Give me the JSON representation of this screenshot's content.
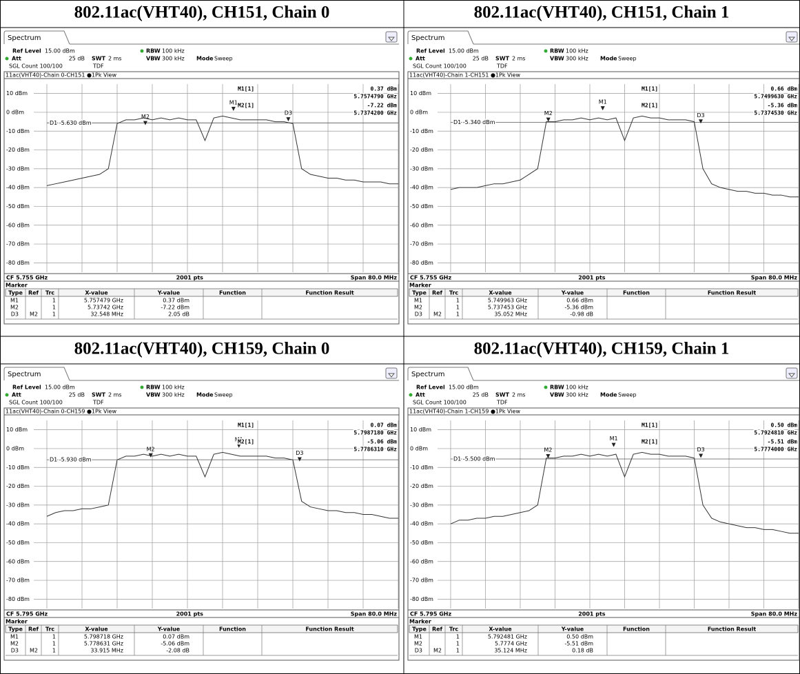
{
  "common": {
    "ref_level": "Ref Level",
    "att": "Att",
    "swt": "SWT",
    "rbw": "RBW",
    "vbw": "VBW",
    "mode": "Mode",
    "marker": "Marker",
    "columns": [
      "Type",
      "Ref",
      "Trc",
      "X-value",
      "Y-value",
      "Function",
      "Function Result"
    ]
  },
  "panels": [
    {
      "heading": "802.11ac(VHT40), CH151, Chain 0",
      "tab": "Spectrum",
      "ref_level": "15.00 dBm",
      "att": "25 dB",
      "swt": "2 ms",
      "rbw": "100 kHz",
      "vbw": "300 kHz",
      "mode": "Sweep",
      "count": "SGL Count 100/100",
      "tdf": "TDF",
      "view": "11ac(VHT40)-Chain 0-CH151 ●1Pk View",
      "readout": [
        [
          "M1[1]",
          "0.37 dBm",
          "5.7574790 GHz"
        ],
        [
          "M2[1]",
          "-7.22 dBm",
          "5.7374200 GHz"
        ]
      ],
      "cf": "CF 5.755 GHz",
      "points": "2001 pts",
      "span": "Span 80.0 MHz",
      "marker_rows": [
        {
          "type": "M1",
          "trc": "1",
          "x": "5.757479 GHz",
          "y": "0.37 dBm"
        },
        {
          "type": "M2",
          "trc": "1",
          "x": "5.73742 GHz",
          "y": "-7.22 dBm"
        },
        {
          "type": "D3",
          "ref": "M2",
          "trc": "1",
          "x": "32.548 MHz",
          "y": "2.05 dB"
        }
      ],
      "chart": {
        "type": "line",
        "xlim": [
          5.715,
          5.795
        ],
        "ylim": [
          -85,
          15
        ],
        "yticks": [
          {
            "value": 10,
            "label": "10 dBm"
          },
          {
            "value": 0,
            "label": "0 dBm"
          },
          {
            "value": -10,
            "label": "-10 dBm"
          },
          {
            "value": -20,
            "label": "-20 dBm"
          },
          {
            "value": -30,
            "label": "-30 dBm"
          },
          {
            "value": -40,
            "label": "-40 dBm"
          },
          {
            "value": -50,
            "label": "-50 dBm"
          },
          {
            "value": -60,
            "label": "-60 dBm"
          },
          {
            "value": -70,
            "label": "-70 dBm"
          },
          {
            "value": -80,
            "label": "-80 dBm"
          }
        ],
        "x": [
          5.715,
          5.717,
          5.719,
          5.721,
          5.723,
          5.725,
          5.727,
          5.729,
          5.731,
          5.733,
          5.735,
          5.737,
          5.739,
          5.741,
          5.743,
          5.745,
          5.747,
          5.749,
          5.751,
          5.753,
          5.755,
          5.757,
          5.759,
          5.761,
          5.763,
          5.765,
          5.767,
          5.769,
          5.771,
          5.773,
          5.775,
          5.777,
          5.779,
          5.781,
          5.783,
          5.785,
          5.787,
          5.789,
          5.791,
          5.793,
          5.795
        ],
        "series": [
          {
            "color": "#333333",
            "values": [
              -39,
              -38,
              -37,
              -36,
              -35,
              -34,
              -33,
              -30,
              -6,
              -4,
              -4,
              -3,
              -4,
              -3,
              -4,
              -3,
              -4,
              -4,
              -15,
              -3,
              -2,
              -3,
              -4,
              -4,
              -4,
              -4,
              -5,
              -5,
              -6,
              -30,
              -33,
              -34,
              -35,
              -35,
              -36,
              -36,
              -37,
              -37,
              -37,
              -38,
              -38
            ]
          }
        ],
        "markers": [
          {
            "name": "M1",
            "x": 5.757479,
            "y": 0.37
          },
          {
            "name": "M2",
            "x": 5.73742,
            "y": -7.22
          }
        ],
        "delta": {
          "name": "D3",
          "dx": 0.032548,
          "dy": 2.05
        },
        "d1": {
          "value": -5.63,
          "label": "D1 -5.630 dBm"
        }
      }
    },
    {
      "heading": "802.11ac(VHT40), CH151, Chain 1",
      "tab": "Spectrum",
      "ref_level": "15.00 dBm",
      "att": "25 dB",
      "swt": "2 ms",
      "rbw": "100 kHz",
      "vbw": "300 kHz",
      "mode": "Sweep",
      "count": "SGL Count 100/100",
      "tdf": "TDF",
      "view": "11ac(VHT40)-Chain 1-CH151 ●1Pk View",
      "readout": [
        [
          "M1[1]",
          "0.66 dBm",
          "5.7499630 GHz"
        ],
        [
          "M2[1]",
          "-5.36 dBm",
          "5.7374530 GHz"
        ]
      ],
      "cf": "CF 5.755 GHz",
      "points": "2001 pts",
      "span": "Span 80.0 MHz",
      "marker_rows": [
        {
          "type": "M1",
          "trc": "1",
          "x": "5.749963 GHz",
          "y": "0.66 dBm"
        },
        {
          "type": "M2",
          "trc": "1",
          "x": "5.737453 GHz",
          "y": "-5.36 dBm"
        },
        {
          "type": "D3",
          "ref": "M2",
          "trc": "1",
          "x": "35.052 MHz",
          "y": "-0.98 dB"
        }
      ],
      "chart": {
        "type": "line",
        "xlim": [
          5.715,
          5.795
        ],
        "ylim": [
          -85,
          15
        ],
        "yticks": [
          {
            "value": 10,
            "label": "10 dBm"
          },
          {
            "value": 0,
            "label": "0 dBm"
          },
          {
            "value": -10,
            "label": "-10 dBm"
          },
          {
            "value": -20,
            "label": "-20 dBm"
          },
          {
            "value": -30,
            "label": "-30 dBm"
          },
          {
            "value": -40,
            "label": "-40 dBm"
          },
          {
            "value": -50,
            "label": "-50 dBm"
          },
          {
            "value": -60,
            "label": "-60 dBm"
          },
          {
            "value": -70,
            "label": "-70 dBm"
          },
          {
            "value": -80,
            "label": "-80 dBm"
          }
        ],
        "x": [
          5.715,
          5.717,
          5.719,
          5.721,
          5.723,
          5.725,
          5.727,
          5.729,
          5.731,
          5.733,
          5.735,
          5.737,
          5.739,
          5.741,
          5.743,
          5.745,
          5.747,
          5.749,
          5.751,
          5.753,
          5.755,
          5.757,
          5.759,
          5.761,
          5.763,
          5.765,
          5.767,
          5.769,
          5.771,
          5.773,
          5.775,
          5.777,
          5.779,
          5.781,
          5.783,
          5.785,
          5.787,
          5.789,
          5.791,
          5.793,
          5.795
        ],
        "series": [
          {
            "color": "#333333",
            "values": [
              -41,
              -40,
              -40,
              -40,
              -39,
              -38,
              -38,
              -37,
              -36,
              -33,
              -30,
              -5,
              -5,
              -4,
              -4,
              -3,
              -4,
              -3,
              -4,
              -3,
              -15,
              -3,
              -2,
              -3,
              -3,
              -4,
              -4,
              -4,
              -5,
              -30,
              -38,
              -40,
              -41,
              -42,
              -42,
              -43,
              -43,
              -44,
              -44,
              -45,
              -45
            ]
          }
        ],
        "markers": [
          {
            "name": "M1",
            "x": 5.749963,
            "y": 0.66
          },
          {
            "name": "M2",
            "x": 5.737453,
            "y": -5.36
          }
        ],
        "delta": {
          "name": "D3",
          "dx": 0.035052,
          "dy": -0.98
        },
        "d1": {
          "value": -5.34,
          "label": "D1 -5.340 dBm"
        }
      }
    },
    {
      "heading": "802.11ac(VHT40), CH159, Chain 0",
      "tab": "Spectrum",
      "ref_level": "15.00 dBm",
      "att": "25 dB",
      "swt": "2 ms",
      "rbw": "100 kHz",
      "vbw": "300 kHz",
      "mode": "Sweep",
      "count": "SGL Count 100/100",
      "tdf": "TDF",
      "view": "11ac(VHT40)-Chain 0-CH159 ●1Pk View",
      "readout": [
        [
          "M1[1]",
          "0.07 dBm",
          "5.7987180 GHz"
        ],
        [
          "M2[1]",
          "-5.06 dBm",
          "5.7786310 GHz"
        ]
      ],
      "cf": "CF 5.795 GHz",
      "points": "2001 pts",
      "span": "Span 80.0 MHz",
      "marker_rows": [
        {
          "type": "M1",
          "trc": "1",
          "x": "5.798718 GHz",
          "y": "0.07 dBm"
        },
        {
          "type": "M2",
          "trc": "1",
          "x": "5.778631 GHz",
          "y": "-5.06 dBm"
        },
        {
          "type": "D3",
          "ref": "M2",
          "trc": "1",
          "x": "33.915 MHz",
          "y": "-2.08 dB"
        }
      ],
      "chart": {
        "type": "line",
        "xlim": [
          5.755,
          5.835
        ],
        "ylim": [
          -85,
          15
        ],
        "yticks": [
          {
            "value": 10,
            "label": "10 dBm"
          },
          {
            "value": 0,
            "label": "0 dBm"
          },
          {
            "value": -10,
            "label": "-10 dBm"
          },
          {
            "value": -20,
            "label": "-20 dBm"
          },
          {
            "value": -30,
            "label": "-30 dBm"
          },
          {
            "value": -40,
            "label": "-40 dBm"
          },
          {
            "value": -50,
            "label": "-50 dBm"
          },
          {
            "value": -60,
            "label": "-60 dBm"
          },
          {
            "value": -70,
            "label": "-70 dBm"
          },
          {
            "value": -80,
            "label": "-80 dBm"
          }
        ],
        "x": [
          5.755,
          5.757,
          5.759,
          5.761,
          5.763,
          5.765,
          5.767,
          5.769,
          5.771,
          5.773,
          5.775,
          5.777,
          5.779,
          5.781,
          5.783,
          5.785,
          5.787,
          5.789,
          5.791,
          5.793,
          5.795,
          5.797,
          5.799,
          5.801,
          5.803,
          5.805,
          5.807,
          5.809,
          5.811,
          5.813,
          5.815,
          5.817,
          5.819,
          5.821,
          5.823,
          5.825,
          5.827,
          5.829,
          5.831,
          5.833,
          5.835
        ],
        "series": [
          {
            "color": "#333333",
            "values": [
              -36,
              -34,
              -33,
              -33,
              -32,
              -32,
              -31,
              -30,
              -6,
              -4,
              -4,
              -3,
              -4,
              -3,
              -4,
              -3,
              -4,
              -4,
              -15,
              -3,
              -2,
              -3,
              -4,
              -4,
              -4,
              -4,
              -5,
              -5,
              -6,
              -28,
              -31,
              -32,
              -33,
              -33,
              -34,
              -34,
              -35,
              -35,
              -36,
              -37,
              -37
            ]
          }
        ],
        "markers": [
          {
            "name": "M1",
            "x": 5.798718,
            "y": 0.07
          },
          {
            "name": "M2",
            "x": 5.778631,
            "y": -5.06
          }
        ],
        "delta": {
          "name": "D3",
          "dx": 0.033915,
          "dy": -2.08
        },
        "d1": {
          "value": -5.93,
          "label": "D1 -5.930 dBm"
        }
      }
    },
    {
      "heading": "802.11ac(VHT40), CH159, Chain 1",
      "tab": "Spectrum",
      "ref_level": "15.00 dBm",
      "att": "25 dB",
      "swt": "2 ms",
      "rbw": "100 kHz",
      "vbw": "300 kHz",
      "mode": "Sweep",
      "count": "SGL Count 100/100",
      "tdf": "TDF",
      "view": "11ac(VHT40)-Chain 1-CH159 ●1Pk View",
      "readout": [
        [
          "M1[1]",
          "0.50 dBm",
          "5.7924810 GHz"
        ],
        [
          "M2[1]",
          "-5.51 dBm",
          "5.7774000 GHz"
        ]
      ],
      "cf": "CF 5.795 GHz",
      "points": "2001 pts",
      "span": "Span 80.0 MHz",
      "marker_rows": [
        {
          "type": "M1",
          "trc": "1",
          "x": "5.792481 GHz",
          "y": "0.50 dBm"
        },
        {
          "type": "M2",
          "trc": "1",
          "x": "5.7774 GHz",
          "y": "-5.51 dBm"
        },
        {
          "type": "D3",
          "ref": "M2",
          "trc": "1",
          "x": "35.124 MHz",
          "y": "0.18 dB"
        }
      ],
      "chart": {
        "type": "line",
        "xlim": [
          5.755,
          5.835
        ],
        "ylim": [
          -85,
          15
        ],
        "yticks": [
          {
            "value": 10,
            "label": "10 dBm"
          },
          {
            "value": 0,
            "label": "0 dBm"
          },
          {
            "value": -10,
            "label": "-10 dBm"
          },
          {
            "value": -20,
            "label": "-20 dBm"
          },
          {
            "value": -30,
            "label": "-30 dBm"
          },
          {
            "value": -40,
            "label": "-40 dBm"
          },
          {
            "value": -50,
            "label": "-50 dBm"
          },
          {
            "value": -60,
            "label": "-60 dBm"
          },
          {
            "value": -70,
            "label": "-70 dBm"
          },
          {
            "value": -80,
            "label": "-80 dBm"
          }
        ],
        "x": [
          5.755,
          5.757,
          5.759,
          5.761,
          5.763,
          5.765,
          5.767,
          5.769,
          5.771,
          5.773,
          5.775,
          5.777,
          5.779,
          5.781,
          5.783,
          5.785,
          5.787,
          5.789,
          5.791,
          5.793,
          5.795,
          5.797,
          5.799,
          5.801,
          5.803,
          5.805,
          5.807,
          5.809,
          5.811,
          5.813,
          5.815,
          5.817,
          5.819,
          5.821,
          5.823,
          5.825,
          5.827,
          5.829,
          5.831,
          5.833,
          5.835
        ],
        "series": [
          {
            "color": "#333333",
            "values": [
              -40,
              -38,
              -38,
              -37,
              -37,
              -36,
              -36,
              -35,
              -34,
              -33,
              -30,
              -5,
              -5,
              -4,
              -4,
              -3,
              -4,
              -3,
              -4,
              -3,
              -15,
              -3,
              -2,
              -3,
              -3,
              -4,
              -4,
              -4,
              -5,
              -30,
              -37,
              -39,
              -40,
              -41,
              -42,
              -42,
              -43,
              -43,
              -44,
              -45,
              -45
            ]
          }
        ],
        "markers": [
          {
            "name": "M1",
            "x": 5.792481,
            "y": 0.5
          },
          {
            "name": "M2",
            "x": 5.7774,
            "y": -5.51
          }
        ],
        "delta": {
          "name": "D3",
          "dx": 0.035124,
          "dy": 0.18
        },
        "d1": {
          "value": -5.5,
          "label": "D1 -5.500 dBm"
        }
      }
    }
  ]
}
